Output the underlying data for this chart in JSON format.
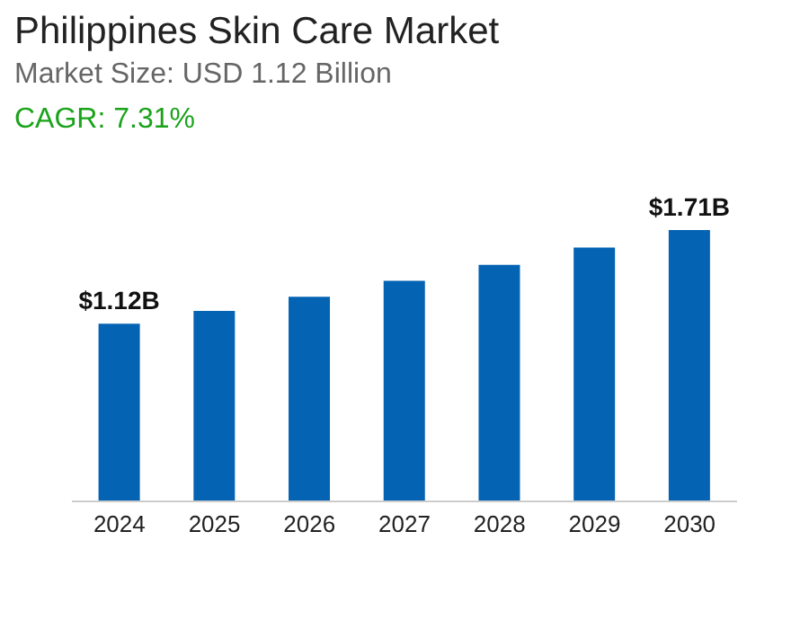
{
  "chart_data": {
    "type": "bar",
    "title": "Philippines Skin Care Market",
    "subtitle": "Market Size: USD 1.12 Billion",
    "annotations": [
      "CAGR: 7.31%"
    ],
    "categories": [
      "2024",
      "2025",
      "2026",
      "2027",
      "2028",
      "2029",
      "2030"
    ],
    "values": [
      1.12,
      1.2,
      1.29,
      1.39,
      1.49,
      1.6,
      1.71
    ],
    "value_labels": [
      "$1.12B",
      null,
      null,
      null,
      null,
      null,
      "$1.71B"
    ],
    "color": "#0563b3",
    "grid": false,
    "legend": false
  }
}
